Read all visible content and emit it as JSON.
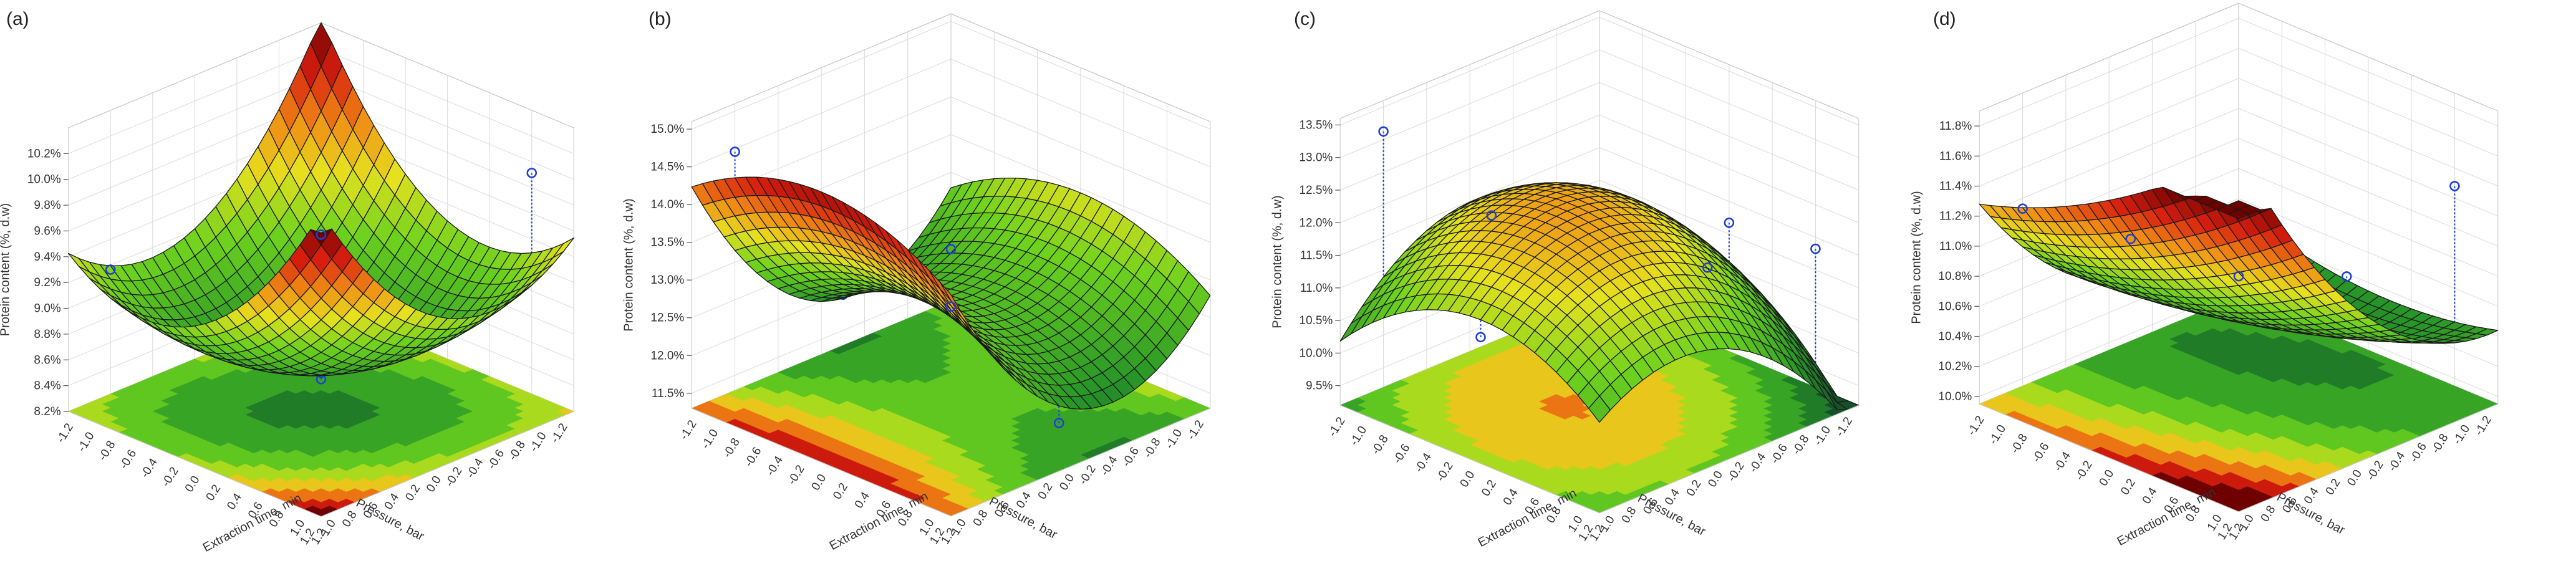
{
  "chart_data": [
    {
      "type": "surface3d",
      "panel_label": "(a)",
      "zlabel": "Protein content (%, d.w)",
      "xlabel": "Pressure, bar",
      "ylabel": "Extraction time, min",
      "x_ticks": [
        "1.2",
        "1.0",
        "0.8",
        "0.6",
        "0.4",
        "0.2",
        "0.0",
        "-0.2",
        "-0.4",
        "-0.6",
        "-0.8",
        "-1.0",
        "-1.2"
      ],
      "y_ticks": [
        "1.2",
        "1.0",
        "0.8",
        "0.6",
        "0.4",
        "0.2",
        "0.0",
        "-0.2",
        "-0.4",
        "-0.6",
        "-0.8",
        "-1.0",
        "-1.2"
      ],
      "z_ticks": [
        "8.2%",
        "8.4%",
        "8.6%",
        "8.8%",
        "9.0%",
        "9.2%",
        "9.4%",
        "9.6%",
        "9.8%",
        "10.0%",
        "10.2%"
      ],
      "zlim": [
        8.2,
        10.4
      ],
      "model": {
        "b0": 8.55,
        "b1": 0.0,
        "b2": 0.05,
        "b11": 0.5,
        "b22": 0.5,
        "b12": 0.35
      },
      "observed": [
        {
          "x": 1.0,
          "y": -1.0,
          "z": 9.3
        },
        {
          "x": -1.0,
          "y": 1.0,
          "z": 10.05
        },
        {
          "x": 1.0,
          "y": 1.0,
          "z": 10.25
        },
        {
          "x": -1.0,
          "y": -1.0,
          "z": 8.55
        },
        {
          "x": 0.0,
          "y": 0.0,
          "z": 8.5
        },
        {
          "x": 0.0,
          "y": 0.0,
          "z": 8.45
        }
      ]
    },
    {
      "type": "surface3d",
      "panel_label": "(b)",
      "zlabel": "Protein content (%, d.w)",
      "xlabel": "Pressure, bar",
      "ylabel": "Extraction time, min",
      "x_ticks": [
        "1.2",
        "1.0",
        "0.8",
        "0.6",
        "0.4",
        "0.2",
        "0.0",
        "-0.2",
        "-0.4",
        "-0.6",
        "-0.8",
        "-1.0",
        "-1.2"
      ],
      "y_ticks": [
        "1.2",
        "1.0",
        "0.8",
        "0.6",
        "0.4",
        "0.2",
        "0.0",
        "-0.2",
        "-0.4",
        "-0.6",
        "-0.8",
        "-1.0",
        "-1.2"
      ],
      "z_ticks": [
        "11.5%",
        "12.0%",
        "12.5%",
        "13.0%",
        "13.5%",
        "14.0%",
        "14.5%",
        "15.0%"
      ],
      "zlim": [
        11.3,
        15.1
      ],
      "model": {
        "b0": 12.65,
        "b1": 0.6,
        "b2": 0.0,
        "b11": 1.05,
        "b22": -0.45,
        "b12": 0.0
      },
      "observed": [
        {
          "x": -1.0,
          "y": 1.0,
          "z": 12.3
        },
        {
          "x": 0.0,
          "y": 1.0,
          "z": 11.7
        },
        {
          "x": 0.0,
          "y": 0.0,
          "z": 12.65
        },
        {
          "x": 1.0,
          "y": 1.0,
          "z": 14.6
        },
        {
          "x": 1.0,
          "y": -1.0,
          "z": 14.7
        },
        {
          "x": 1.0,
          "y": 0.0,
          "z": 13.4
        }
      ]
    },
    {
      "type": "surface3d",
      "panel_label": "(c)",
      "zlabel": "Protein content (%, d.w)",
      "xlabel": "Pressure, bar",
      "ylabel": "Extraction time, min",
      "x_ticks": [
        "1.2",
        "1.0",
        "0.8",
        "0.6",
        "0.4",
        "0.2",
        "0.0",
        "-0.2",
        "-0.4",
        "-0.6",
        "-0.8",
        "-1.0",
        "-1.2"
      ],
      "y_ticks": [
        "1.2",
        "1.0",
        "0.8",
        "0.6",
        "0.4",
        "0.2",
        "0.0",
        "-0.2",
        "-0.4",
        "-0.6",
        "-0.8",
        "-1.0",
        "-1.2"
      ],
      "z_ticks": [
        "9.5%",
        "10.0%",
        "10.5%",
        "11.0%",
        "11.5%",
        "12.0%",
        "12.5%",
        "13.0%",
        "13.5%"
      ],
      "zlim": [
        9.2,
        13.6
      ],
      "model": {
        "b0": 12.2,
        "b1": 0.35,
        "b2": -0.25,
        "b11": -0.85,
        "b22": -0.7,
        "b12": 0.35
      },
      "observed": [
        {
          "x": -1.0,
          "y": 1.0,
          "z": 11.6
        },
        {
          "x": -0.6,
          "y": 0.6,
          "z": 12.0
        },
        {
          "x": 0.0,
          "y": 0.0,
          "z": 11.7
        },
        {
          "x": 0.0,
          "y": 1.0,
          "z": 12.0
        },
        {
          "x": 1.0,
          "y": 0.0,
          "z": 12.8
        },
        {
          "x": 1.0,
          "y": -1.0,
          "z": 13.4
        },
        {
          "x": 0.3,
          "y": -0.8,
          "z": 9.9
        }
      ]
    },
    {
      "type": "surface3d",
      "panel_label": "(d)",
      "zlabel": "Protein content (%, d.w)",
      "xlabel": "Pressure, bar",
      "ylabel": "Extraction time, min",
      "x_ticks": [
        "1.2",
        "1.0",
        "0.8",
        "0.6",
        "0.4",
        "0.2",
        "0.0",
        "-0.2",
        "-0.4",
        "-0.6",
        "-0.8",
        "-1.0",
        "-1.2"
      ],
      "y_ticks": [
        "1.2",
        "1.0",
        "0.8",
        "0.6",
        "0.4",
        "0.2",
        "0.0",
        "-0.2",
        "-0.4",
        "-0.6",
        "-0.8",
        "-1.0",
        "-1.2"
      ],
      "z_ticks": [
        "10.0%",
        "10.2%",
        "10.4%",
        "10.6%",
        "10.8%",
        "11.0%",
        "11.2%",
        "11.4%",
        "11.6%",
        "11.8%"
      ],
      "zlim": [
        9.95,
        11.9
      ],
      "model": {
        "b0": 10.5,
        "b1": 0.55,
        "b2": 0.2,
        "b11": 0.35,
        "b22": 0.1,
        "b12": 0.2
      },
      "observed": [
        {
          "x": -1.0,
          "y": 1.0,
          "z": 11.4
        },
        {
          "x": 1.0,
          "y": 1.0,
          "z": 11.85
        },
        {
          "x": 1.0,
          "y": -1.0,
          "z": 11.25
        },
        {
          "x": 0.0,
          "y": 0.0,
          "z": 10.8
        },
        {
          "x": 0.0,
          "y": -1.0,
          "z": 10.75
        },
        {
          "x": -1.0,
          "y": -1.0,
          "z": 10.2
        },
        {
          "x": -1.0,
          "y": 0.0,
          "z": 10.5
        }
      ]
    }
  ]
}
